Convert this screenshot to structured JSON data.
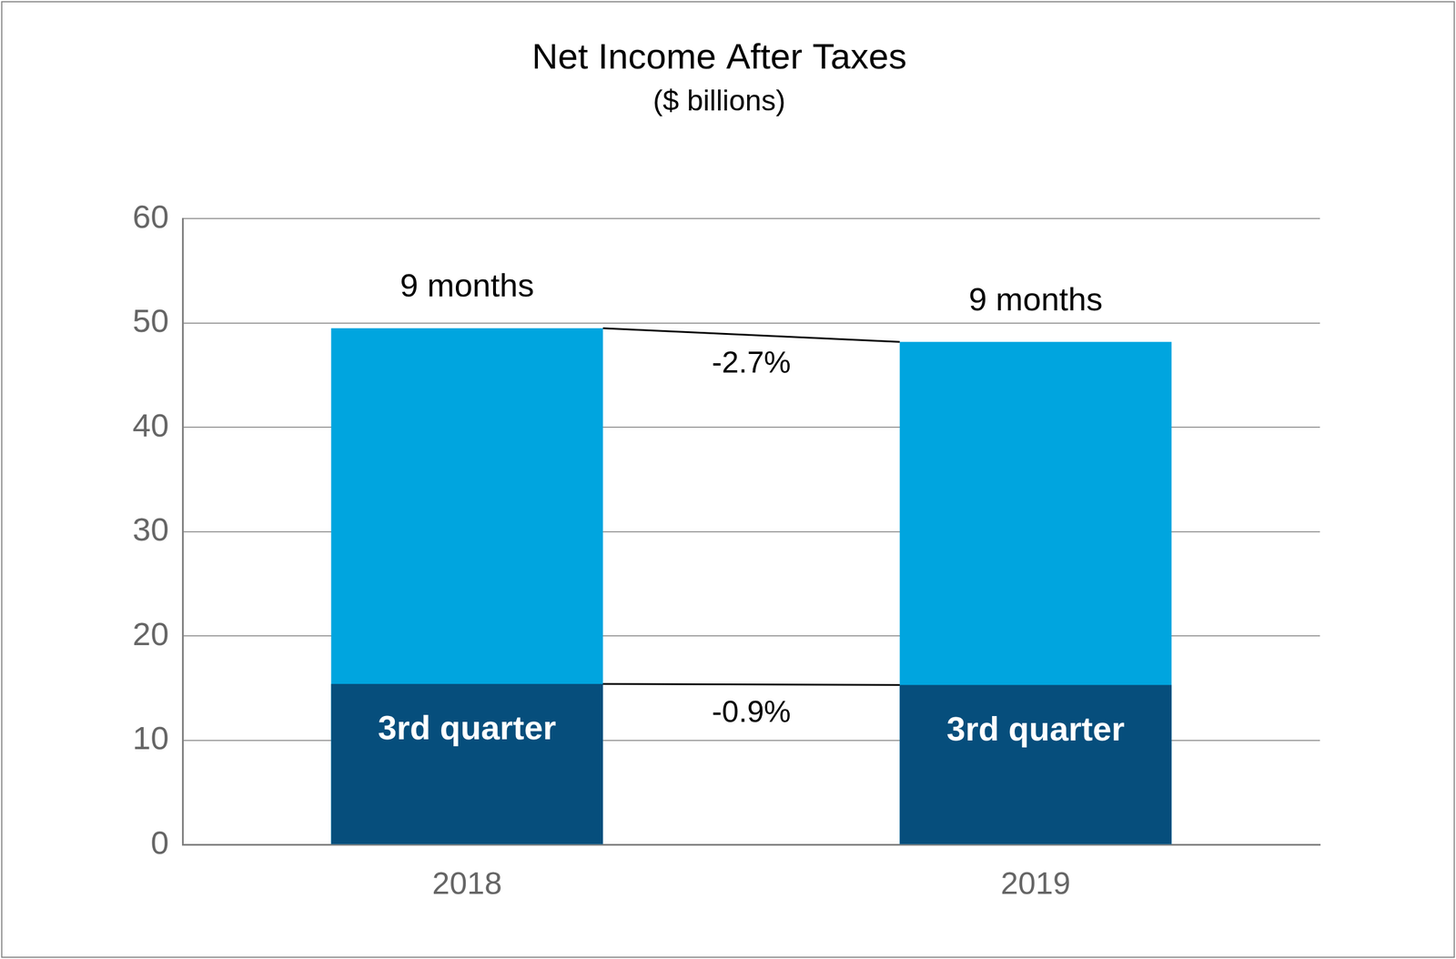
{
  "chart_data": {
    "type": "bar",
    "title": "Net Income After Taxes",
    "subtitle": "($ billions)",
    "categories": [
      "2018",
      "2019"
    ],
    "series": [
      {
        "name": "9 months",
        "color": "#00a5df",
        "values": [
          49.5,
          48.2
        ],
        "change_label": "-2.7%"
      },
      {
        "name": "3rd quarter",
        "color": "#064e7c",
        "values": [
          15.4,
          15.3
        ],
        "change_label": "-0.9%"
      }
    ],
    "ylim": [
      0,
      60
    ],
    "yticks": [
      0,
      10,
      20,
      30,
      40,
      50,
      60
    ],
    "grid": true,
    "stacked": false
  }
}
